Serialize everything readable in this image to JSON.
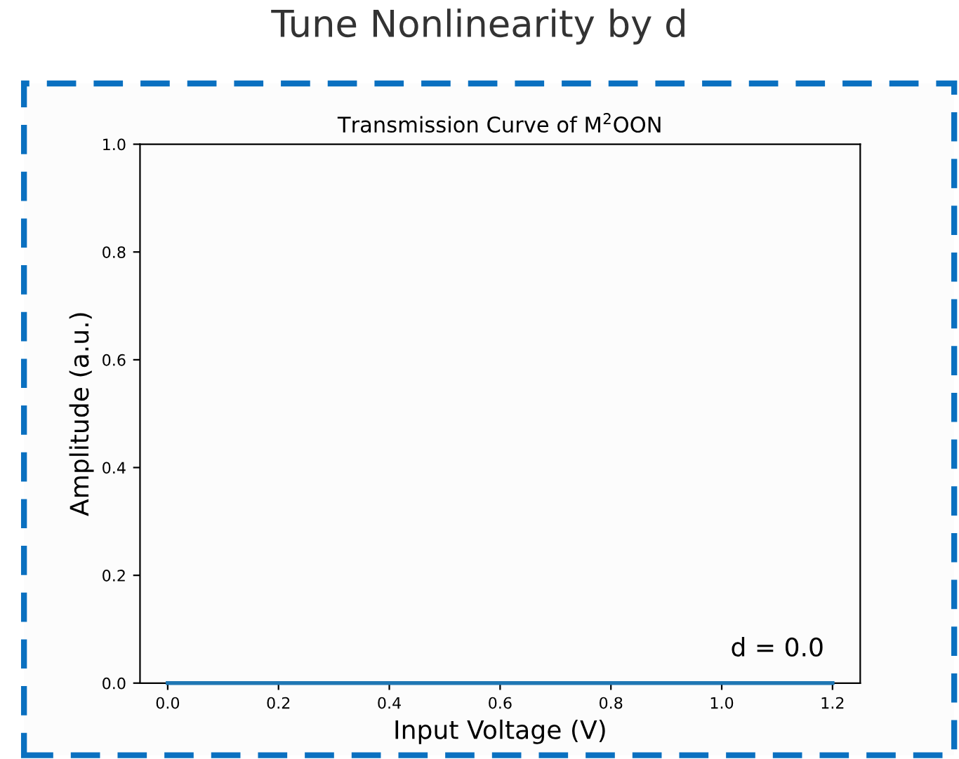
{
  "chart_data": {
    "type": "line",
    "title": "Tune Nonlinearity by d",
    "subtitle": "Transmission Curve of M$^{2}$OON",
    "xlabel": "Input Voltage (V)",
    "ylabel": "Amplitude (a.u.)",
    "x": [
      0,
      1.2
    ],
    "series": [
      {
        "color": "#1f77b4",
        "values": [
          0,
          0
        ]
      }
    ],
    "xlim": [
      -0.05,
      1.25
    ],
    "xticks": [
      {
        "value": 0,
        "label": "0.0"
      },
      0.2,
      0.4,
      0.6,
      0.8,
      {
        "value": 1,
        "label": "1.0"
      },
      1.2
    ],
    "ylim": [
      0,
      1
    ],
    "yticks": [
      {
        "value": 0,
        "label": "0.0"
      },
      0.2,
      0.4,
      0.6,
      0.8,
      {
        "value": 1,
        "label": "1.0"
      }
    ],
    "annotations": [
      "d = 0.0"
    ],
    "grid": false,
    "legend": false
  }
}
